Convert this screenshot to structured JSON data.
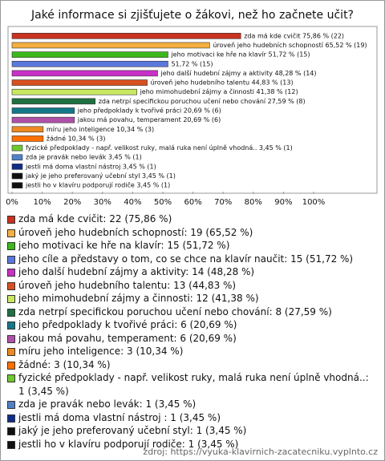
{
  "chart_data": {
    "type": "hbar",
    "title": "Jaké informace si zjišťujete o žákovi, než ho začnete učit?",
    "categories": [
      "zda má kde cvičit: 22 (75,86 %)",
      "úroveň jeho hudebních schopností: 19 (65,52 %)",
      "jeho motivaci ke hře na klavír: 15 (51,72 %)",
      "jeho cíle a představy o tom, co se chce na klavír naučit: 15 (51,72 %)",
      "jeho další hudební zájmy a aktivity: 14 (48,28 %)",
      "úroveň jeho hudebního talentu: 13 (44,83 %)",
      "jeho mimohudební zájmy a činnosti: 12 (41,38 %)",
      "zda netrpí specifickou poruchou učení nebo chování: 8 (27,59 %)",
      "jeho předpoklady k tvořivé práci: 6 (20,69 %)",
      "jakou má povahu, temperament: 6 (20,69 %)",
      "míru jeho inteligence: 3 (10,34 %)",
      "žádné: 3 (10,34 %)",
      "fyzické předpoklady - např. velikost ruky, malá ruka není úplně vhodná..: 1 (3,45 %)",
      "zda je pravák nebo levák: 1 (3,45 %)",
      "jestli má doma vlastní nástroj : 1 (3,45 %)",
      "jaký je jeho preferovaný učební styl: 1 (3,45 %)",
      "jestli ho v klavíru podporují rodiče: 1 (3,45 %)"
    ],
    "values": [
      75.86,
      65.52,
      51.72,
      51.72,
      48.28,
      44.83,
      41.38,
      27.59,
      20.69,
      20.69,
      10.34,
      10.34,
      3.45,
      3.45,
      3.45,
      3.45,
      3.45
    ],
    "value_labels": [
      "zda má kde cvičit 75,86 % (22)",
      "úroveň jeho hudebních schopností 65,52 % (19)",
      "jeho motivaci ke hře na klavír 51,72 % (15)",
      "51,72 % (15)",
      "jeho další hudební zájmy a aktivity 48,28 % (14)",
      "úroveň jeho hudebního talentu 44,83 % (13)",
      "jeho mimohudební zájmy a činnosti 41,38 % (12)",
      "zda netrpí specifickou poruchou učení nebo chování 27,59 % (8)",
      "jeho předpoklady k tvořivé práci 20,69 % (6)",
      "jakou má povahu, temperament 20,69 % (6)",
      "míru jeho inteligence 10,34 % (3)",
      "žádné 10,34 % (3)",
      "fyzické předpoklady - např. velikost ruky, malá ruka není úplně vhodná.. 3,45 % (1)",
      "zda je pravák nebo levák 3,45 % (1)",
      "jestli má doma vlastní nástroj  3,45 % (1)",
      "jaký je jeho preferovaný učební styl 3,45 % (1)",
      "jestli ho v klavíru podporují rodiče 3,45 % (1)"
    ],
    "colors": [
      "#c83220",
      "#f5b040",
      "#3cb81c",
      "#5a78dc",
      "#c830c8",
      "#d85020",
      "#c8e860",
      "#1e7040",
      "#137888",
      "#b050a8",
      "#ee8820",
      "#ff7000",
      "#70c830",
      "#5080c8",
      "#102e88",
      "#111111",
      "#111111"
    ],
    "xlim": [
      0,
      100
    ],
    "xticks": [
      {
        "value": 0,
        "label": "0%"
      },
      {
        "value": 10,
        "label": "10%"
      },
      {
        "value": 20,
        "label": "20%"
      },
      {
        "value": 30,
        "label": "30%"
      },
      {
        "value": 40,
        "label": "40%"
      },
      {
        "value": 50,
        "label": "50%"
      },
      {
        "value": 60,
        "label": "60%"
      },
      {
        "value": 70,
        "label": "70%"
      },
      {
        "value": 80,
        "label": "80%"
      },
      {
        "value": 90,
        "label": "90%"
      },
      {
        "value": 100,
        "label": "100%"
      }
    ],
    "source": "zdroj: https://vyuka-klavirnich-zacatecniku.vyplnto.cz"
  }
}
